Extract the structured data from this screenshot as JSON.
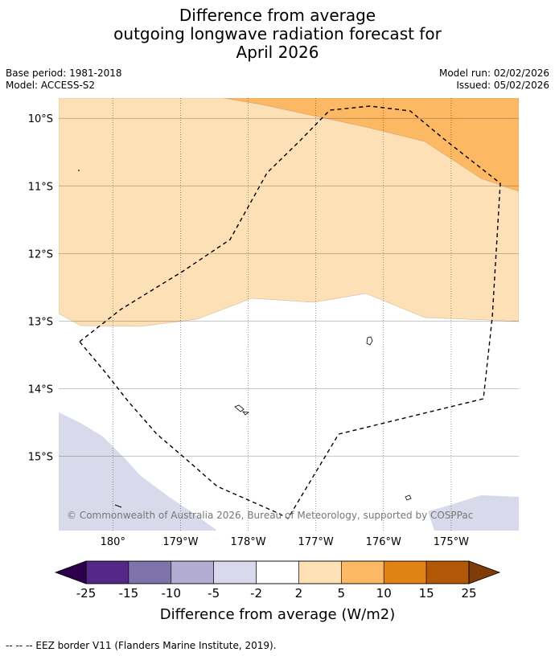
{
  "title_lines": [
    "Difference from average",
    "outgoing longwave radiation forecast for",
    "April 2026"
  ],
  "meta": {
    "base_period": "Base period: 1981-2018",
    "model": "Model: ACCESS-S2",
    "model_run": "Model run: 02/02/2026",
    "issued": "Issued: 05/02/2026"
  },
  "footer": "--  --  -- EEZ border V11 (Flanders Marine Institute, 2019).",
  "chart_data": {
    "type": "heatmap",
    "title": "Difference from average outgoing longwave radiation forecast for April 2026",
    "x_range_lon": [
      -180.8,
      -174.0
    ],
    "y_range_lat": [
      -9.7,
      -16.1
    ],
    "x_ticks": [
      {
        "lon": -180,
        "label": "180°"
      },
      {
        "lon": -179,
        "label": "179°W"
      },
      {
        "lon": -178,
        "label": "178°W"
      },
      {
        "lon": -177,
        "label": "177°W"
      },
      {
        "lon": -176,
        "label": "176°W"
      },
      {
        "lon": -175,
        "label": "175°W"
      }
    ],
    "y_ticks": [
      {
        "lat": -10,
        "label": "10°S"
      },
      {
        "lat": -11,
        "label": "11°S"
      },
      {
        "lat": -12,
        "label": "12°S"
      },
      {
        "lat": -13,
        "label": "13°S"
      },
      {
        "lat": -14,
        "label": "14°S"
      },
      {
        "lat": -15,
        "label": "15°S"
      }
    ],
    "regions": [
      {
        "name": "5 to 10 W/m2",
        "color": "#fdb863"
      },
      {
        "name": "2 to 5 W/m2",
        "color": "#fee0b6"
      },
      {
        "name": "-2 to 2 W/m2",
        "color": "#ffffff"
      },
      {
        "name": "-5 to -2 W/m2",
        "color": "#d8daeb"
      }
    ],
    "colorbar": {
      "label": "Difference from average (W/m2)",
      "tick_labels": [
        "-25",
        "-15",
        "-10",
        "-5",
        "-2",
        "2",
        "5",
        "10",
        "15",
        "25"
      ],
      "under_color": "#2d004b",
      "over_color": "#7f3b08",
      "colors": [
        "#542788",
        "#8073ac",
        "#b2abd2",
        "#d8daeb",
        "#ffffff",
        "#fee0b6",
        "#fdb863",
        "#e08214",
        "#b35806"
      ]
    },
    "copyright": "© Commonwealth of Australia 2026, Bureau of Meteorology, supported by COSPPac",
    "legend_entry": "EEZ border V11 (Flanders Marine Institute, 2019)"
  }
}
